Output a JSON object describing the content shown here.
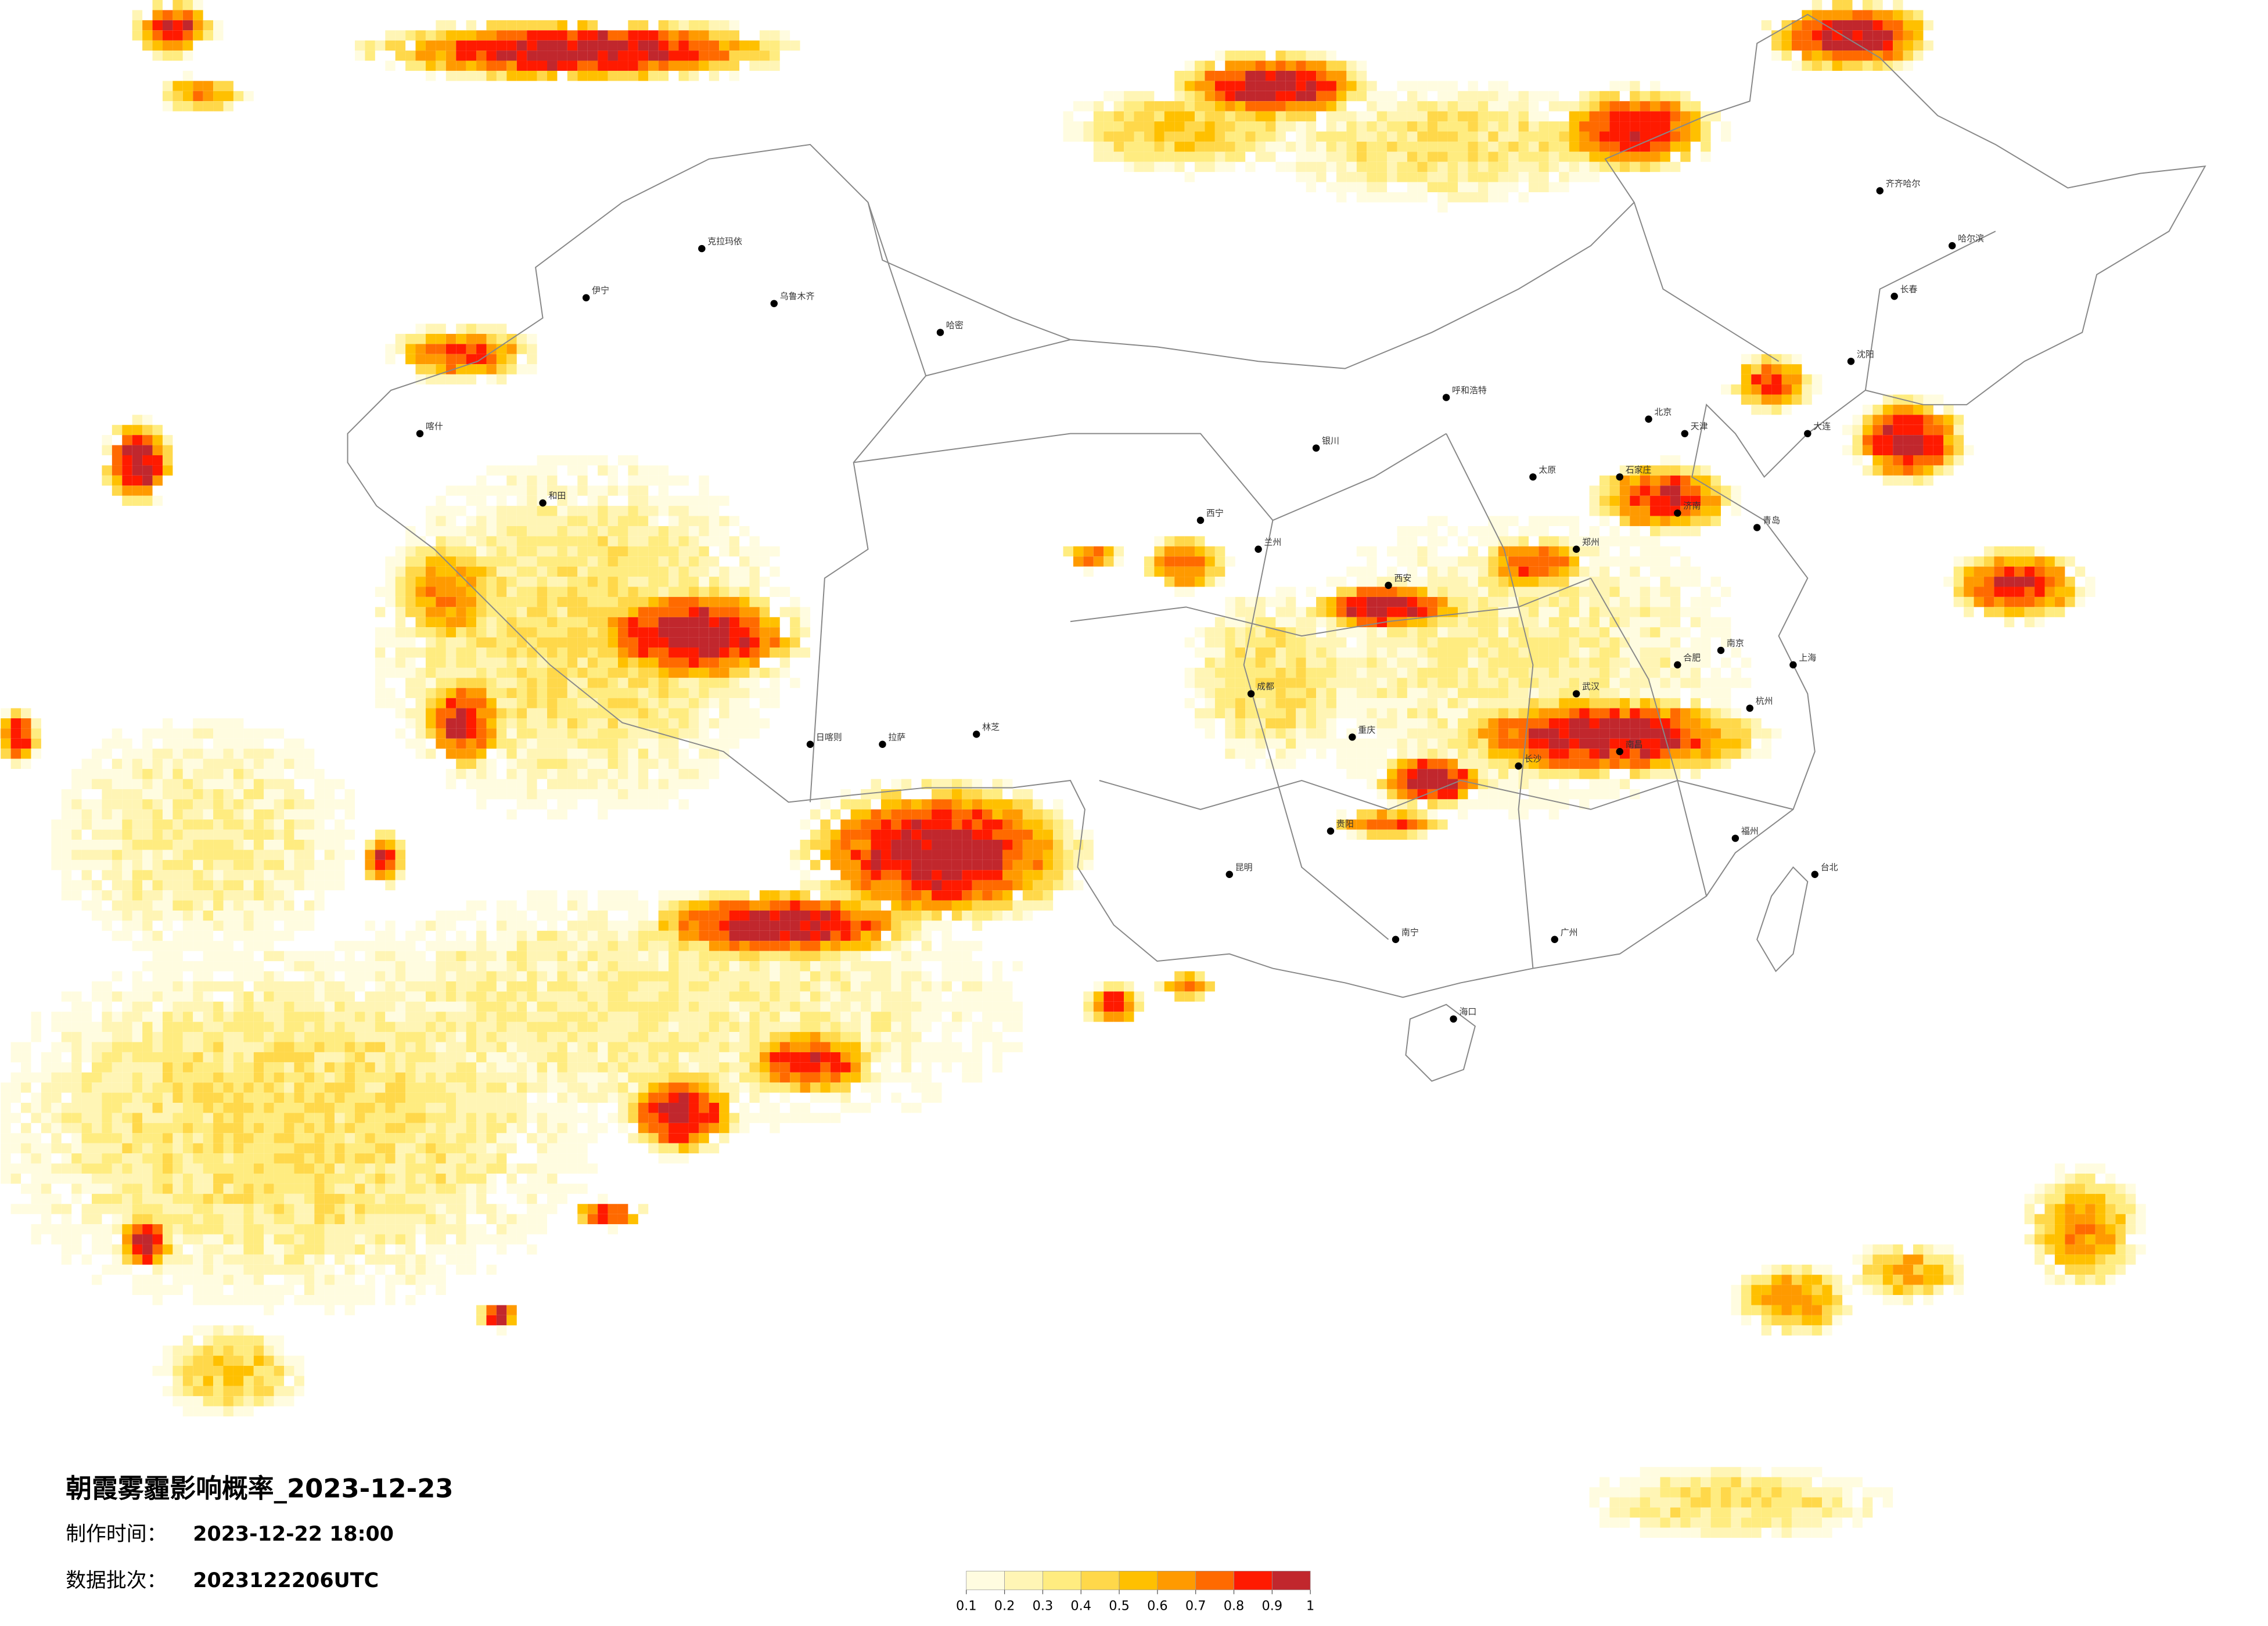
{
  "title": "朝霞雾霾影响概率_2023-12-23",
  "made_label": "制作时间：",
  "made_time": "2023-12-22 18:00",
  "batch_label": "数据批次：",
  "batch": "2023122206UTC",
  "legend": {
    "colors": [
      "#fffce0",
      "#fff5b5",
      "#ffec80",
      "#ffd84a",
      "#ffc000",
      "#ff9a00",
      "#ff6a00",
      "#ff1a00",
      "#c1272d"
    ],
    "ticks": [
      0.1,
      0.2,
      0.3,
      0.4,
      0.5,
      0.6,
      0.7,
      0.8,
      0.9,
      1
    ]
  },
  "cities": [
    "乌鲁木齐",
    "克拉玛依",
    "伊宁",
    "喀什",
    "和田",
    "哈密",
    "拉萨",
    "日喀则",
    "林芝",
    "西宁",
    "兰州",
    "银川",
    "呼和浩特",
    "北京",
    "天津",
    "石家庄",
    "太原",
    "济南",
    "西安",
    "郑州",
    "武汉",
    "成都",
    "重庆",
    "贵阳",
    "昆明",
    "南宁",
    "长沙",
    "南昌",
    "合肥",
    "南京",
    "上海",
    "杭州",
    "福州",
    "广州",
    "海口",
    "台北",
    "沈阳",
    "长春",
    "哈尔滨",
    "齐齐哈尔",
    "大连",
    "青岛"
  ]
}
